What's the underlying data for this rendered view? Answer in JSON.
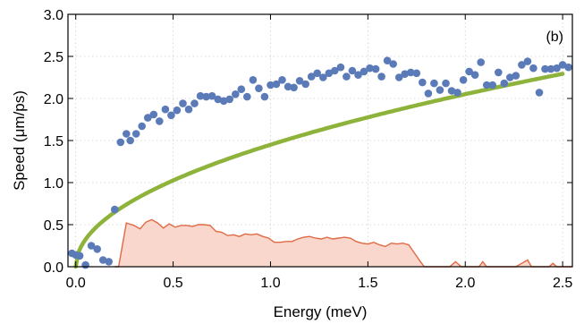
{
  "chart_data": {
    "type": "scatter",
    "xlabel": "Energy (meV)",
    "ylabel": "Speed  (μm/ps)",
    "annotation": "(b)",
    "xlim": [
      -0.04,
      2.55
    ],
    "ylim": [
      0.0,
      3.0
    ],
    "x_ticks": [
      0.0,
      0.5,
      1.0,
      1.5,
      2.0,
      2.5
    ],
    "x_tick_labels": [
      "0.0",
      "0.5",
      "1.0",
      "1.5",
      "2.0",
      "2.5"
    ],
    "y_ticks": [
      0.0,
      0.5,
      1.0,
      1.5,
      2.0,
      2.5,
      3.0
    ],
    "y_tick_labels": [
      "0.0",
      "0.5",
      "1.0",
      "1.5",
      "2.0",
      "2.5",
      "3.0"
    ],
    "grid": "dotted",
    "colors": {
      "points": "#5b7bb8",
      "curve": "#8db33a",
      "fill": "#f9d7cd",
      "fill_line": "#e06a44"
    },
    "series": [
      {
        "kind": "scatter",
        "points": [
          [
            -0.02,
            0.16
          ],
          [
            0.0,
            0.14
          ],
          [
            0.02,
            0.13
          ],
          [
            0.05,
            0.02
          ],
          [
            0.08,
            0.25
          ],
          [
            0.11,
            0.21
          ],
          [
            0.14,
            0.08
          ],
          [
            0.17,
            0.06
          ],
          [
            0.2,
            0.68
          ],
          [
            0.23,
            1.48
          ],
          [
            0.26,
            1.58
          ],
          [
            0.28,
            1.5
          ],
          [
            0.31,
            1.58
          ],
          [
            0.34,
            1.67
          ],
          [
            0.37,
            1.77
          ],
          [
            0.4,
            1.81
          ],
          [
            0.43,
            1.73
          ],
          [
            0.46,
            1.87
          ],
          [
            0.49,
            1.8
          ],
          [
            0.52,
            1.86
          ],
          [
            0.55,
            1.94
          ],
          [
            0.58,
            1.87
          ],
          [
            0.61,
            1.94
          ],
          [
            0.64,
            2.03
          ],
          [
            0.67,
            2.02
          ],
          [
            0.7,
            2.03
          ],
          [
            0.73,
            1.99
          ],
          [
            0.76,
            1.97
          ],
          [
            0.79,
            1.99
          ],
          [
            0.82,
            2.05
          ],
          [
            0.85,
            2.11
          ],
          [
            0.88,
            2.02
          ],
          [
            0.91,
            2.22
          ],
          [
            0.94,
            2.12
          ],
          [
            0.97,
            2.02
          ],
          [
            1.0,
            2.16
          ],
          [
            1.03,
            2.17
          ],
          [
            1.06,
            2.22
          ],
          [
            1.09,
            2.14
          ],
          [
            1.12,
            2.13
          ],
          [
            1.15,
            2.21
          ],
          [
            1.18,
            2.17
          ],
          [
            1.21,
            2.26
          ],
          [
            1.24,
            2.3
          ],
          [
            1.27,
            2.25
          ],
          [
            1.3,
            2.3
          ],
          [
            1.33,
            2.33
          ],
          [
            1.36,
            2.37
          ],
          [
            1.39,
            2.26
          ],
          [
            1.42,
            2.33
          ],
          [
            1.45,
            2.28
          ],
          [
            1.48,
            2.32
          ],
          [
            1.51,
            2.36
          ],
          [
            1.54,
            2.35
          ],
          [
            1.57,
            2.26
          ],
          [
            1.6,
            2.45
          ],
          [
            1.63,
            2.41
          ],
          [
            1.66,
            2.25
          ],
          [
            1.69,
            2.29
          ],
          [
            1.72,
            2.31
          ],
          [
            1.75,
            2.3
          ],
          [
            1.78,
            2.19
          ],
          [
            1.81,
            2.06
          ],
          [
            1.84,
            2.18
          ],
          [
            1.87,
            2.1
          ],
          [
            1.9,
            2.18
          ],
          [
            1.93,
            2.09
          ],
          [
            1.96,
            2.07
          ],
          [
            1.99,
            2.22
          ],
          [
            2.02,
            2.32
          ],
          [
            2.05,
            2.28
          ],
          [
            2.08,
            2.43
          ],
          [
            2.11,
            2.16
          ],
          [
            2.14,
            2.16
          ],
          [
            2.17,
            2.31
          ],
          [
            2.2,
            2.18
          ],
          [
            2.23,
            2.25
          ],
          [
            2.26,
            2.27
          ],
          [
            2.29,
            2.4
          ],
          [
            2.32,
            2.44
          ],
          [
            2.35,
            2.36
          ],
          [
            2.38,
            2.07
          ],
          [
            2.41,
            2.35
          ],
          [
            2.44,
            2.35
          ],
          [
            2.47,
            2.36
          ],
          [
            2.5,
            2.4
          ],
          [
            2.53,
            2.37
          ]
        ]
      },
      {
        "kind": "line",
        "function": "y = 1.45 * x^0.5",
        "x_range": [
          0.0,
          2.5
        ]
      },
      {
        "kind": "area",
        "points": [
          [
            0.2,
            0.0
          ],
          [
            0.22,
            0.0
          ],
          [
            0.26,
            0.52
          ],
          [
            0.3,
            0.49
          ],
          [
            0.33,
            0.45
          ],
          [
            0.36,
            0.53
          ],
          [
            0.39,
            0.56
          ],
          [
            0.42,
            0.52
          ],
          [
            0.45,
            0.46
          ],
          [
            0.48,
            0.51
          ],
          [
            0.51,
            0.47
          ],
          [
            0.54,
            0.49
          ],
          [
            0.57,
            0.49
          ],
          [
            0.6,
            0.48
          ],
          [
            0.63,
            0.5
          ],
          [
            0.66,
            0.5
          ],
          [
            0.69,
            0.49
          ],
          [
            0.72,
            0.42
          ],
          [
            0.75,
            0.41
          ],
          [
            0.78,
            0.37
          ],
          [
            0.81,
            0.38
          ],
          [
            0.84,
            0.36
          ],
          [
            0.87,
            0.39
          ],
          [
            0.9,
            0.38
          ],
          [
            0.93,
            0.39
          ],
          [
            0.96,
            0.36
          ],
          [
            0.99,
            0.34
          ],
          [
            1.02,
            0.29
          ],
          [
            1.05,
            0.29
          ],
          [
            1.08,
            0.3
          ],
          [
            1.11,
            0.3
          ],
          [
            1.14,
            0.33
          ],
          [
            1.17,
            0.35
          ],
          [
            1.2,
            0.36
          ],
          [
            1.23,
            0.34
          ],
          [
            1.26,
            0.33
          ],
          [
            1.29,
            0.35
          ],
          [
            1.32,
            0.33
          ],
          [
            1.35,
            0.34
          ],
          [
            1.38,
            0.35
          ],
          [
            1.41,
            0.34
          ],
          [
            1.44,
            0.3
          ],
          [
            1.47,
            0.28
          ],
          [
            1.5,
            0.27
          ],
          [
            1.53,
            0.29
          ],
          [
            1.56,
            0.26
          ],
          [
            1.59,
            0.24
          ],
          [
            1.62,
            0.28
          ],
          [
            1.65,
            0.27
          ],
          [
            1.68,
            0.28
          ],
          [
            1.71,
            0.26
          ],
          [
            1.74,
            0.16
          ],
          [
            1.77,
            0.06
          ],
          [
            1.79,
            0.0
          ],
          [
            1.81,
            0.0
          ],
          [
            1.92,
            0.0
          ],
          [
            1.95,
            0.06
          ],
          [
            1.98,
            0.0
          ],
          [
            2.07,
            0.0
          ],
          [
            2.09,
            0.06
          ],
          [
            2.11,
            0.0
          ],
          [
            2.26,
            0.0
          ],
          [
            2.29,
            0.04
          ],
          [
            2.32,
            0.08
          ],
          [
            2.34,
            0.0
          ],
          [
            2.43,
            0.0
          ],
          [
            2.45,
            0.04
          ],
          [
            2.47,
            0.0
          ],
          [
            2.55,
            0.0
          ]
        ]
      }
    ]
  }
}
